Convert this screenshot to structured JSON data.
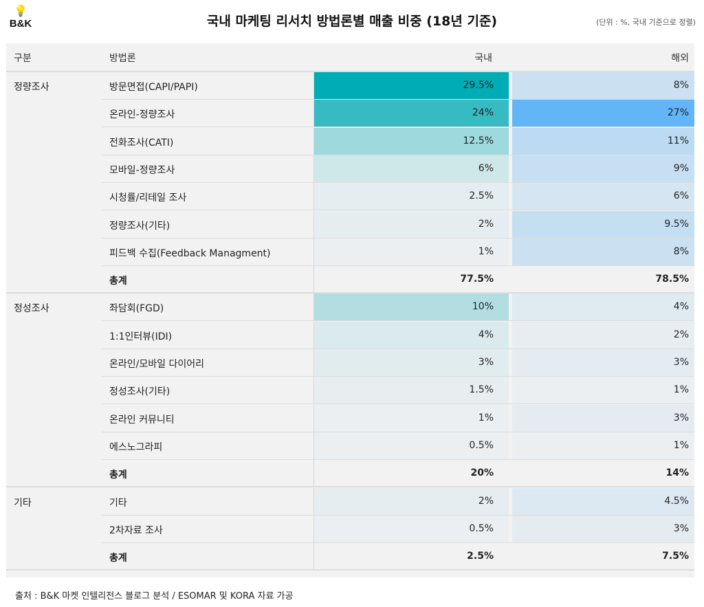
{
  "logo": {
    "text": "B&K",
    "icon": "lightbulb-dollar-icon"
  },
  "title": "국내 마케팅 리서치 방법론별 매출 비중 (18년 기준)",
  "unit_note": "(단위 : %, 국내 기준으로 정렬)",
  "colors": {
    "domestic_max": "#00acb5",
    "overseas_max": "#62b5f6",
    "min": "#eceff1",
    "table_bg": "#f2f2f2"
  },
  "columns": {
    "group": "구분",
    "method": "방법론",
    "domestic": "국내",
    "overseas": "해외"
  },
  "rows": [
    {
      "group": "정량조사",
      "method": "방문면접(CAPI/PAPI)",
      "domestic": "29.5%",
      "overseas": "8%",
      "d": 29.5,
      "o": 8
    },
    {
      "group": "",
      "method": "온라인-정량조사",
      "domestic": "24%",
      "overseas": "27%",
      "d": 24,
      "o": 27
    },
    {
      "group": "",
      "method": "전화조사(CATI)",
      "domestic": "12.5%",
      "overseas": "11%",
      "d": 12.5,
      "o": 11
    },
    {
      "group": "",
      "method": "모바일-정량조사",
      "domestic": "6%",
      "overseas": "9%",
      "d": 6,
      "o": 9
    },
    {
      "group": "",
      "method": "시청률/리테일 조사",
      "domestic": "2.5%",
      "overseas": "6%",
      "d": 2.5,
      "o": 6
    },
    {
      "group": "",
      "method": "정량조사(기타)",
      "domestic": "2%",
      "overseas": "9.5%",
      "d": 2,
      "o": 9.5
    },
    {
      "group": "",
      "method": "피드백 수집(Feedback Managment)",
      "domestic": "1%",
      "overseas": "8%",
      "d": 1,
      "o": 8
    },
    {
      "group": "",
      "method": "총계",
      "domestic": "77.5%",
      "overseas": "78.5%",
      "total": true
    },
    {
      "group": "정성조사",
      "method": "좌담회(FGD)",
      "domestic": "10%",
      "overseas": "4%",
      "d": 10,
      "o": 4
    },
    {
      "group": "",
      "method": "1:1인터뷰(IDI)",
      "domestic": "4%",
      "overseas": "2%",
      "d": 4,
      "o": 2
    },
    {
      "group": "",
      "method": "온라인/모바일 다이어리",
      "domestic": "3%",
      "overseas": "3%",
      "d": 3,
      "o": 3
    },
    {
      "group": "",
      "method": "정성조사(기타)",
      "domestic": "1.5%",
      "overseas": "1%",
      "d": 1.5,
      "o": 1
    },
    {
      "group": "",
      "method": "온라인 커뮤니티",
      "domestic": "1%",
      "overseas": "3%",
      "d": 1,
      "o": 3
    },
    {
      "group": "",
      "method": "에스노그라피",
      "domestic": "0.5%",
      "overseas": "1%",
      "d": 0.5,
      "o": 1
    },
    {
      "group": "",
      "method": "총계",
      "domestic": "20%",
      "overseas": "14%",
      "total": true
    },
    {
      "group": "기타",
      "method": "기타",
      "domestic": "2%",
      "overseas": "4.5%",
      "d": 2,
      "o": 4.5
    },
    {
      "group": "",
      "method": "2차자료 조사",
      "domestic": "0.5%",
      "overseas": "3%",
      "d": 0.5,
      "o": 3
    },
    {
      "group": "",
      "method": "총계",
      "domestic": "2.5%",
      "overseas": "7.5%",
      "total": true
    }
  ],
  "source": "출처 : B&K 마켓 인텔리전스 블로그 분석 / ESOMAR 및 KORA 자료 가공"
}
